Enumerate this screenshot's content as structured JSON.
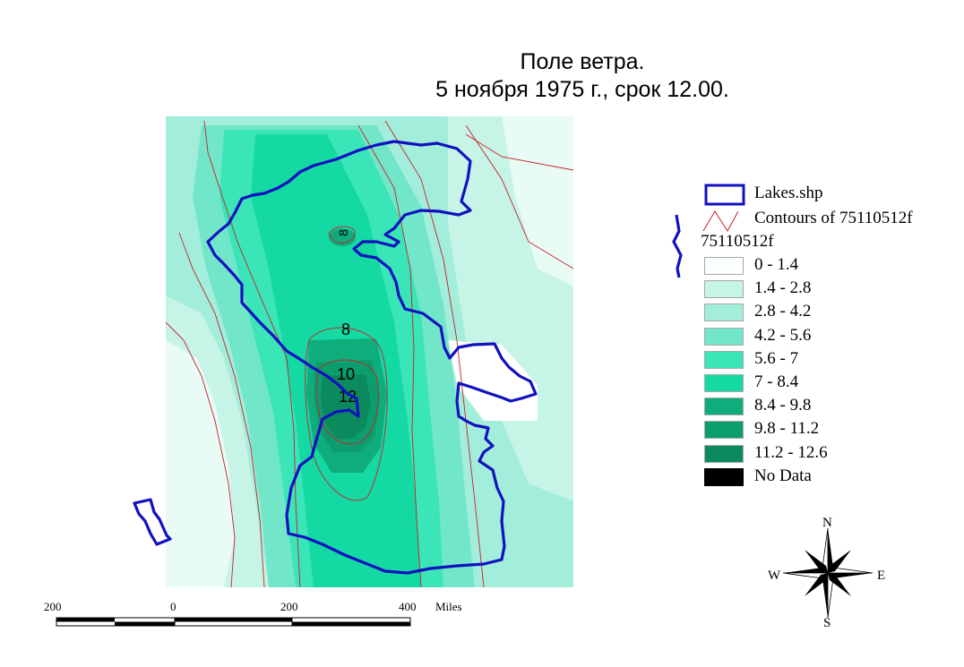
{
  "title": {
    "line1": "Поле ветра.",
    "line2": "5 ноября 1975 г., срок 12.00."
  },
  "map": {
    "contour_labels": [
      "8",
      "8",
      "10",
      "12"
    ]
  },
  "legend": {
    "lakes_label": "Lakes.shp",
    "contours_label": "Contours of 75110512f",
    "grid_label": "75110512f",
    "classes": [
      {
        "label": "0 - 1.4",
        "color": "#fafffd"
      },
      {
        "label": "1.4 - 2.8",
        "color": "#c6f4e6"
      },
      {
        "label": "2.8 - 4.2",
        "color": "#a3eedb"
      },
      {
        "label": "4.2 - 5.6",
        "color": "#72e6c9"
      },
      {
        "label": "5.6 - 7",
        "color": "#3ae5b8"
      },
      {
        "label": "7 - 8.4",
        "color": "#14d9a3"
      },
      {
        "label": "8.4 - 9.8",
        "color": "#0fad7c"
      },
      {
        "label": "9.8 - 11.2",
        "color": "#0c9d6e"
      },
      {
        "label": "11.2 - 12.6",
        "color": "#0a8a5d"
      },
      {
        "label": "No Data",
        "color": "#000000"
      }
    ],
    "lake_color": "#1111c0",
    "contour_color": "#c8202a"
  },
  "compass": {
    "n": "N",
    "s": "S",
    "e": "E",
    "w": "W"
  },
  "scale_bar": {
    "labels": [
      "200",
      "0",
      "200",
      "400"
    ],
    "unit": "Miles"
  }
}
